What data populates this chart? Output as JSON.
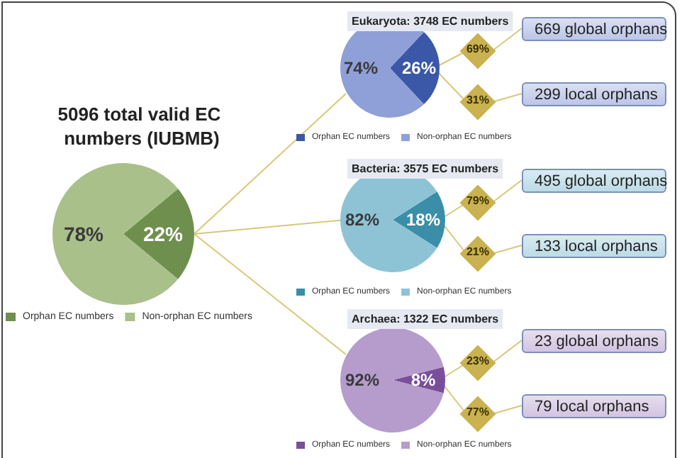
{
  "chart_data": [
    {
      "type": "pie",
      "title": "5096 total valid EC numbers (IUBMB)",
      "categories": [
        "Orphan EC numbers",
        "Non-orphan EC numbers"
      ],
      "values": [
        22,
        78
      ],
      "colors": [
        "#6f8f4f",
        "#a9c08a"
      ],
      "value_labels": [
        "22%",
        "78%"
      ],
      "legend": "bottom"
    },
    {
      "type": "pie",
      "title": "Eukaryota: 3748 EC numbers",
      "categories": [
        "Orphan EC numbers",
        "Non-orphan EC numbers"
      ],
      "values": [
        26,
        74
      ],
      "colors": [
        "#3b58a8",
        "#8f9fd8"
      ],
      "value_labels": [
        "26%",
        "74%"
      ],
      "legend": "bottom",
      "annotations": [
        "69%",
        "669 global orphans",
        "31%",
        "299 local orphans"
      ]
    },
    {
      "type": "pie",
      "title": "Bacteria: 3575 EC numbers",
      "categories": [
        "Orphan EC numbers",
        "Non-orphan EC numbers"
      ],
      "values": [
        18,
        82
      ],
      "colors": [
        "#3a8ea8",
        "#8ec3d6"
      ],
      "value_labels": [
        "18%",
        "82%"
      ],
      "legend": "bottom",
      "annotations": [
        "79%",
        "495 global orphans",
        "21%",
        "133 local orphans"
      ]
    },
    {
      "type": "pie",
      "title": "Archaea: 1322 EC numbers",
      "categories": [
        "Orphan EC numbers",
        "Non-orphan EC numbers"
      ],
      "values": [
        8,
        92
      ],
      "colors": [
        "#7a4f9a",
        "#b59ccc"
      ],
      "value_labels": [
        "8%",
        "92%"
      ],
      "legend": "bottom",
      "annotations": [
        "23%",
        "23 global orphans",
        "77%",
        "79 local orphans"
      ]
    }
  ]
}
